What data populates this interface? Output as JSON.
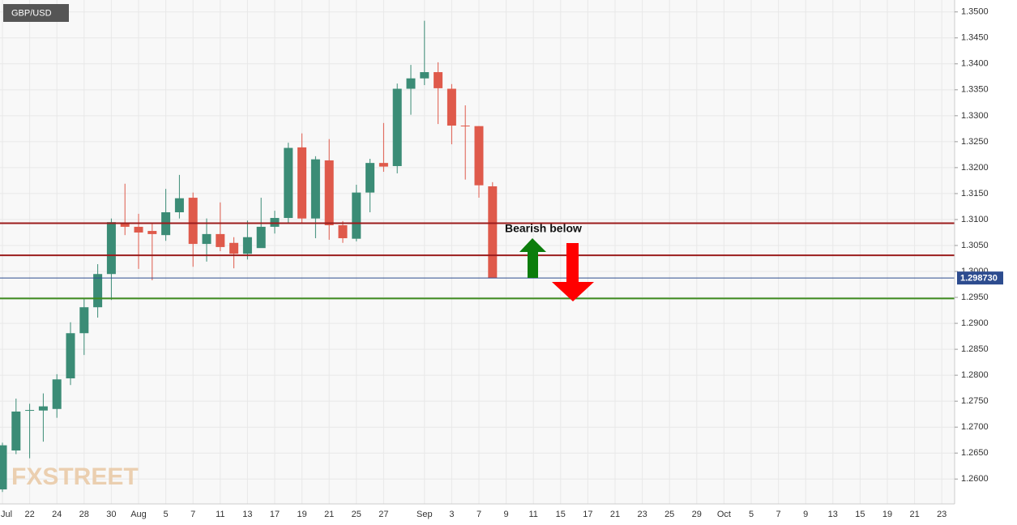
{
  "chart_data": {
    "type": "candlestick",
    "title": "GBP/USD",
    "watermark": "FXSTREET",
    "annotation": "Bearish below",
    "categories": [
      "Jul",
      null,
      "22",
      null,
      "24",
      null,
      "28",
      null,
      "30",
      null,
      "Aug",
      null,
      "5",
      null,
      "7",
      null,
      "11",
      null,
      "13",
      null,
      "17",
      null,
      "19",
      null,
      "21",
      null,
      "25",
      null,
      "27",
      null,
      null,
      "Sep",
      null,
      "3",
      null,
      "7",
      null,
      "9",
      null,
      "11",
      null,
      "15",
      null,
      "17",
      null,
      "21",
      null,
      "23",
      null,
      "25",
      null,
      "29",
      null,
      "Oct",
      null,
      "5",
      null,
      "7",
      null,
      "9",
      null,
      "13",
      null,
      "15",
      null,
      "19",
      null,
      "21",
      null,
      "23"
    ],
    "open": [
      1.258,
      1.2655,
      1.2733,
      1.2732,
      1.2735,
      1.2794,
      1.2881,
      1.2931,
      1.2995,
      1.3094,
      1.3086,
      1.3078,
      1.307,
      1.3114,
      1.3142,
      1.3053,
      1.3072,
      1.3055,
      1.3034,
      1.3045,
      1.3086,
      1.3103,
      1.3239,
      1.3102,
      1.3214,
      1.3089,
      1.3063,
      1.3152,
      1.3209,
      1.3203,
      1.3352,
      1.3372,
      1.3384,
      1.3352,
      1.3281,
      1.328,
      1.3164,
      null,
      null,
      null,
      null,
      null,
      null,
      null,
      null,
      null,
      null,
      null,
      null,
      null,
      null,
      null,
      null,
      null,
      null,
      null,
      null,
      null,
      null,
      null,
      null,
      null,
      null,
      null,
      null,
      null,
      null,
      null,
      null,
      null
    ],
    "high": [
      1.267,
      1.2755,
      1.2745,
      1.2765,
      1.2802,
      1.2902,
      1.2948,
      1.3014,
      1.3102,
      1.3169,
      1.3111,
      1.3092,
      1.3159,
      1.3186,
      1.3152,
      1.3102,
      1.3133,
      1.3066,
      1.3098,
      1.3142,
      1.3117,
      1.3248,
      1.3266,
      1.3222,
      1.3255,
      1.3097,
      1.3167,
      1.3217,
      1.3286,
      1.3362,
      1.3398,
      1.3483,
      1.3403,
      1.3361,
      1.332,
      1.328,
      1.3172,
      null,
      null,
      null,
      null,
      null,
      null,
      null,
      null,
      null,
      null,
      null,
      null,
      null,
      null,
      null,
      null,
      null,
      null,
      null,
      null,
      null,
      null,
      null,
      null,
      null,
      null,
      null,
      null,
      null,
      null,
      null,
      null,
      null
    ],
    "low": [
      1.2575,
      1.2648,
      1.264,
      1.2672,
      1.2718,
      1.2781,
      1.2839,
      1.2911,
      1.2945,
      1.307,
      1.3005,
      1.2983,
      1.3059,
      1.3102,
      1.3009,
      1.3019,
      1.3039,
      1.3006,
      1.3023,
      1.3047,
      1.3073,
      1.3094,
      1.3092,
      1.3064,
      1.3061,
      1.3055,
      1.3058,
      1.3114,
      1.3192,
      1.3189,
      1.3302,
      1.3359,
      1.3284,
      1.3245,
      1.3177,
      1.3142,
      1.2987,
      null,
      null,
      null,
      null,
      null,
      null,
      null,
      null,
      null,
      null,
      null,
      null,
      null,
      null,
      null,
      null,
      null,
      null,
      null,
      null,
      null,
      null,
      null,
      null,
      null,
      null,
      null,
      null,
      null,
      null,
      null,
      null,
      null
    ],
    "close": [
      1.2665,
      1.273,
      1.2733,
      1.274,
      1.2792,
      1.2881,
      1.2931,
      1.2995,
      1.3095,
      1.3086,
      1.3075,
      1.3072,
      1.3114,
      1.3141,
      1.3053,
      1.3072,
      1.3047,
      1.3034,
      1.3066,
      1.3086,
      1.3103,
      1.3238,
      1.3102,
      1.3216,
      1.3089,
      1.3064,
      1.3152,
      1.3209,
      1.3202,
      1.3352,
      1.3372,
      1.3384,
      1.3353,
      1.3281,
      1.328,
      1.3166,
      1.29873,
      null,
      null,
      null,
      null,
      null,
      null,
      null,
      null,
      null,
      null,
      null,
      null,
      null,
      null,
      null,
      null,
      null,
      null,
      null,
      null,
      null,
      null,
      null,
      null,
      null,
      null,
      null,
      null,
      null,
      null,
      null,
      null,
      null
    ],
    "up_color": "#3b8c76",
    "down_color": "#df5a4b",
    "ylim": [
      1.2552,
      1.3523
    ],
    "yticks": [
      {
        "value": 1.26,
        "label": "1.2600"
      },
      {
        "value": 1.265,
        "label": "1.2650"
      },
      {
        "value": 1.27,
        "label": "1.2700"
      },
      {
        "value": 1.275,
        "label": "1.2750"
      },
      {
        "value": 1.28,
        "label": "1.2800"
      },
      {
        "value": 1.285,
        "label": "1.2850"
      },
      {
        "value": 1.29,
        "label": "1.2900"
      },
      {
        "value": 1.295,
        "label": "1.2950"
      },
      {
        "value": 1.3,
        "label": "1.3000"
      },
      {
        "value": 1.305,
        "label": "1.3050"
      },
      {
        "value": 1.31,
        "label": "1.3100"
      },
      {
        "value": 1.315,
        "label": "1.3150"
      },
      {
        "value": 1.32,
        "label": "1.3200"
      },
      {
        "value": 1.325,
        "label": "1.3250"
      },
      {
        "value": 1.33,
        "label": "1.3300"
      },
      {
        "value": 1.335,
        "label": "1.3350"
      },
      {
        "value": 1.34,
        "label": "1.3400"
      },
      {
        "value": 1.345,
        "label": "1.3450"
      },
      {
        "value": 1.35,
        "label": "1.3500"
      }
    ],
    "last_price": {
      "value": 1.29873,
      "label": "1.298730",
      "color": "#2d4c8f"
    },
    "levels": [
      {
        "value": 1.3093,
        "color": "#9b1c1c"
      },
      {
        "value": 1.3031,
        "color": "#9b1c1c"
      },
      {
        "value": 1.2948,
        "color": "#3d8b1f"
      }
    ],
    "grid": true
  }
}
